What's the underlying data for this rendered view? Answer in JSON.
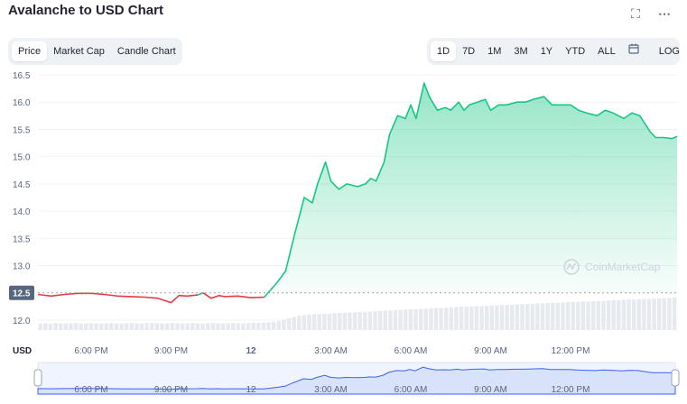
{
  "header": {
    "title": "Avalanche to USD Chart",
    "icons": [
      "fullscreen-icon",
      "more-icon"
    ]
  },
  "tabs": {
    "items": [
      "Price",
      "Market Cap",
      "Candle Chart"
    ],
    "selected": "Price"
  },
  "ranges": {
    "items": [
      "1D",
      "7D",
      "1M",
      "3M",
      "1Y",
      "YTD",
      "ALL"
    ],
    "selected": "1D",
    "log_label": "LOG",
    "calendar_icon": "calendar-icon"
  },
  "watermark": "CoinMarketCap",
  "colors": {
    "up": "#16c784",
    "down": "#ea3943",
    "accent": "#3861fb"
  },
  "chart_data": {
    "type": "area",
    "title": "Avalanche to USD Chart",
    "xlabel": "",
    "ylabel": "USD",
    "yticks": [
      12.0,
      12.5,
      13.0,
      13.5,
      14.0,
      14.5,
      15.0,
      15.5,
      16.0,
      16.5
    ],
    "ylim": [
      11.8,
      16.55
    ],
    "xticks": [
      "6:00 PM",
      "9:00 PM",
      "12",
      "3:00 AM",
      "6:00 AM",
      "9:00 AM",
      "12:00 PM"
    ],
    "reference_price": 12.5,
    "reference_label": "12.5",
    "grid": "horizontal",
    "series": [
      {
        "x": [
          0,
          0.5,
          1,
          1.5,
          2,
          2.5,
          3,
          3.5,
          4,
          4.5,
          5,
          5.3,
          5.6,
          6,
          6.2,
          6.5,
          6.8,
          7,
          7.5,
          8,
          8.5,
          9,
          9.3,
          9.6,
          10,
          10.3,
          10.5,
          10.8,
          11,
          11.3,
          11.6,
          12,
          12.3,
          12.5,
          12.7,
          13,
          13.2,
          13.5,
          13.8,
          14,
          14.2,
          14.5,
          14.7,
          15,
          15.3,
          15.5,
          15.8,
          16,
          16.2,
          16.5,
          16.8,
          17,
          17.3,
          17.6,
          18,
          18.3,
          18.6,
          19,
          19.3,
          19.6,
          20,
          20.3,
          20.6,
          21,
          21.3,
          21.6,
          22,
          22.3,
          22.6,
          23,
          23.2,
          23.5,
          23.8,
          24
        ],
        "y": [
          12.47,
          12.44,
          12.47,
          12.49,
          12.49,
          12.47,
          12.44,
          12.43,
          12.42,
          12.4,
          12.32,
          12.45,
          12.44,
          12.46,
          12.5,
          12.4,
          12.45,
          12.43,
          12.44,
          12.41,
          12.42,
          12.7,
          12.9,
          13.5,
          14.25,
          14.15,
          14.5,
          14.9,
          14.55,
          14.4,
          14.5,
          14.45,
          14.5,
          14.6,
          14.55,
          14.9,
          15.4,
          15.75,
          15.7,
          15.95,
          15.7,
          16.35,
          16.1,
          15.85,
          15.9,
          15.85,
          16.0,
          15.85,
          15.95,
          16.0,
          16.05,
          15.85,
          15.95,
          15.95,
          16.0,
          16.0,
          16.05,
          16.1,
          15.95,
          15.95,
          15.95,
          15.85,
          15.8,
          15.75,
          15.85,
          15.8,
          15.7,
          15.8,
          15.75,
          15.45,
          15.35,
          15.35,
          15.33,
          15.37
        ]
      }
    ],
    "volume": [
      0.2,
      0.21,
      0.2,
      0.22,
      0.21,
      0.2,
      0.21,
      0.22,
      0.2,
      0.21,
      0.22,
      0.21,
      0.2,
      0.21,
      0.22,
      0.21,
      0.2,
      0.21,
      0.22,
      0.21,
      0.2,
      0.21,
      0.22,
      0.21,
      0.2,
      0.21,
      0.22,
      0.21,
      0.2,
      0.21,
      0.22,
      0.21,
      0.2,
      0.21,
      0.22,
      0.21,
      0.2,
      0.21,
      0.22,
      0.21,
      0.2,
      0.21,
      0.22,
      0.22,
      0.23,
      0.24,
      0.26,
      0.28,
      0.32,
      0.36,
      0.4,
      0.44,
      0.46,
      0.48,
      0.49,
      0.5,
      0.5,
      0.51,
      0.52,
      0.53,
      0.53,
      0.54,
      0.55,
      0.56,
      0.56,
      0.57,
      0.58,
      0.59,
      0.6,
      0.6,
      0.61,
      0.62,
      0.63,
      0.64,
      0.64,
      0.65,
      0.66,
      0.67,
      0.68,
      0.68,
      0.69,
      0.7,
      0.71,
      0.72,
      0.72,
      0.73,
      0.74,
      0.74,
      0.75,
      0.76,
      0.76,
      0.77,
      0.78,
      0.78,
      0.79,
      0.8,
      0.8,
      0.81,
      0.82,
      0.82,
      0.83,
      0.84,
      0.84,
      0.85,
      0.86,
      0.86,
      0.87,
      0.88,
      0.88,
      0.89,
      0.9,
      0.9,
      0.91,
      0.92,
      0.92,
      0.93,
      0.94,
      0.94,
      0.95,
      0.96,
      0.96,
      0.97,
      0.98,
      0.98,
      0.99,
      1.0
    ]
  }
}
